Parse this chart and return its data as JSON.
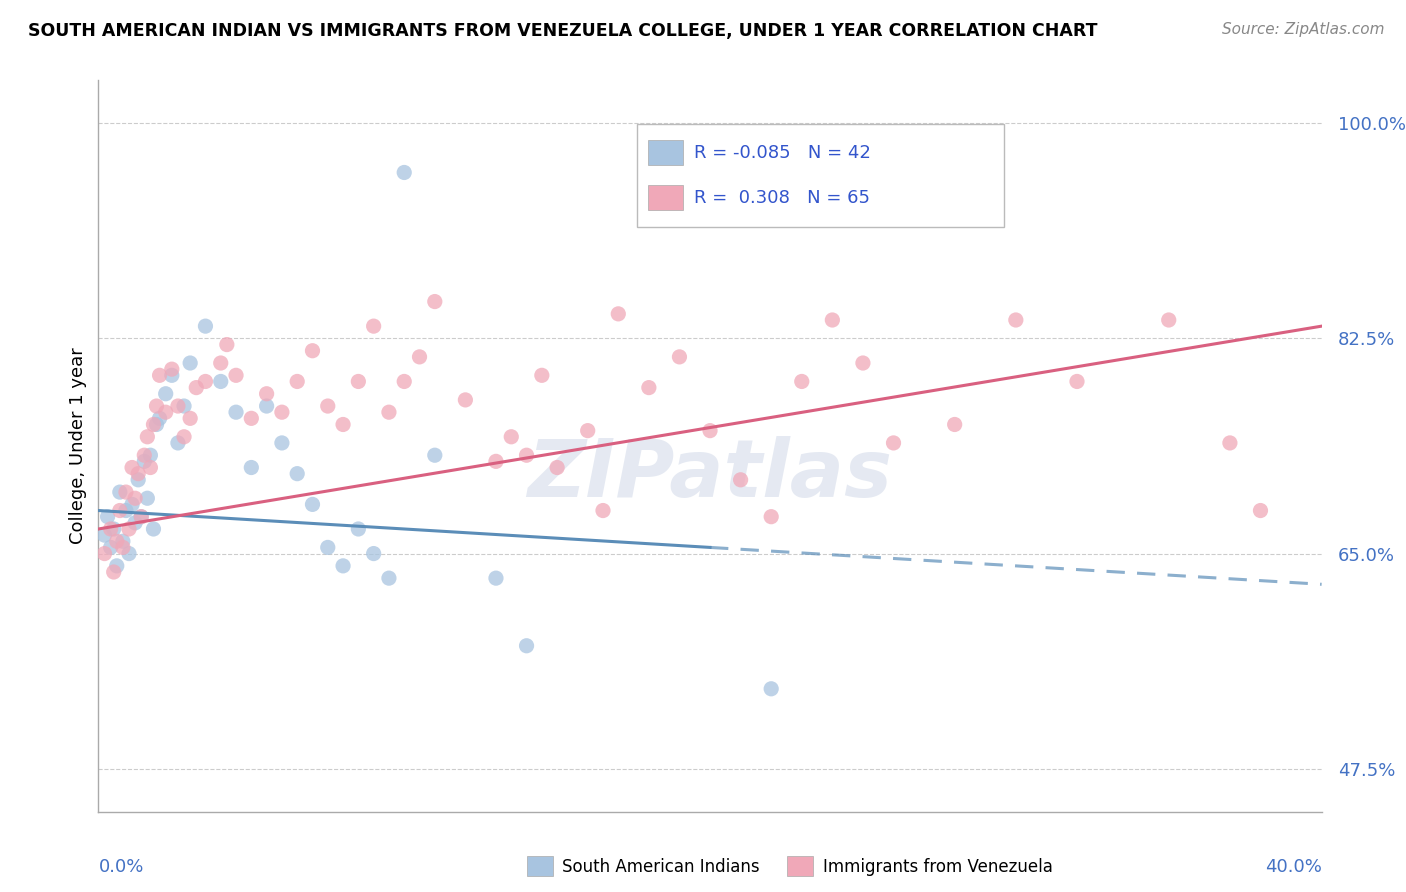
{
  "title": "SOUTH AMERICAN INDIAN VS IMMIGRANTS FROM VENEZUELA COLLEGE, UNDER 1 YEAR CORRELATION CHART",
  "source_text": "Source: ZipAtlas.com",
  "ylabel_label": "College, Under 1 year",
  "xmin": 0.0,
  "xmax": 40.0,
  "ymin": 44.0,
  "ymax": 103.5,
  "yticks": [
    47.5,
    65.0,
    82.5,
    100.0
  ],
  "blue_color": "#a8c4e0",
  "pink_color": "#f0a8b8",
  "blue_line_color": "#5b8db8",
  "pink_line_color": "#d96080",
  "blue_trend": [
    0.0,
    68.5,
    40.0,
    62.5
  ],
  "pink_trend": [
    0.0,
    67.0,
    40.0,
    83.5
  ],
  "blue_dashed_start_x": 20.0,
  "blue_dots": [
    [
      0.2,
      66.5
    ],
    [
      0.3,
      68.0
    ],
    [
      0.4,
      65.5
    ],
    [
      0.5,
      67.0
    ],
    [
      0.6,
      64.0
    ],
    [
      0.7,
      70.0
    ],
    [
      0.8,
      66.0
    ],
    [
      0.9,
      68.5
    ],
    [
      1.0,
      65.0
    ],
    [
      1.1,
      69.0
    ],
    [
      1.2,
      67.5
    ],
    [
      1.3,
      71.0
    ],
    [
      1.4,
      68.0
    ],
    [
      1.5,
      72.5
    ],
    [
      1.6,
      69.5
    ],
    [
      1.7,
      73.0
    ],
    [
      1.8,
      67.0
    ],
    [
      1.9,
      75.5
    ],
    [
      2.0,
      76.0
    ],
    [
      2.2,
      78.0
    ],
    [
      2.4,
      79.5
    ],
    [
      2.6,
      74.0
    ],
    [
      2.8,
      77.0
    ],
    [
      3.0,
      80.5
    ],
    [
      3.5,
      83.5
    ],
    [
      4.0,
      79.0
    ],
    [
      4.5,
      76.5
    ],
    [
      5.0,
      72.0
    ],
    [
      5.5,
      77.0
    ],
    [
      6.0,
      74.0
    ],
    [
      6.5,
      71.5
    ],
    [
      7.0,
      69.0
    ],
    [
      7.5,
      65.5
    ],
    [
      8.0,
      64.0
    ],
    [
      8.5,
      67.0
    ],
    [
      9.0,
      65.0
    ],
    [
      9.5,
      63.0
    ],
    [
      10.0,
      96.0
    ],
    [
      11.0,
      73.0
    ],
    [
      13.0,
      63.0
    ],
    [
      14.0,
      57.5
    ],
    [
      22.0,
      54.0
    ]
  ],
  "pink_dots": [
    [
      0.2,
      65.0
    ],
    [
      0.4,
      67.0
    ],
    [
      0.5,
      63.5
    ],
    [
      0.6,
      66.0
    ],
    [
      0.7,
      68.5
    ],
    [
      0.8,
      65.5
    ],
    [
      0.9,
      70.0
    ],
    [
      1.0,
      67.0
    ],
    [
      1.1,
      72.0
    ],
    [
      1.2,
      69.5
    ],
    [
      1.3,
      71.5
    ],
    [
      1.4,
      68.0
    ],
    [
      1.5,
      73.0
    ],
    [
      1.6,
      74.5
    ],
    [
      1.7,
      72.0
    ],
    [
      1.8,
      75.5
    ],
    [
      1.9,
      77.0
    ],
    [
      2.0,
      79.5
    ],
    [
      2.2,
      76.5
    ],
    [
      2.4,
      80.0
    ],
    [
      2.6,
      77.0
    ],
    [
      2.8,
      74.5
    ],
    [
      3.0,
      76.0
    ],
    [
      3.2,
      78.5
    ],
    [
      3.5,
      79.0
    ],
    [
      4.0,
      80.5
    ],
    [
      4.2,
      82.0
    ],
    [
      4.5,
      79.5
    ],
    [
      5.0,
      76.0
    ],
    [
      5.5,
      78.0
    ],
    [
      6.0,
      76.5
    ],
    [
      6.5,
      79.0
    ],
    [
      7.0,
      81.5
    ],
    [
      7.5,
      77.0
    ],
    [
      8.0,
      75.5
    ],
    [
      8.5,
      79.0
    ],
    [
      9.0,
      83.5
    ],
    [
      9.5,
      76.5
    ],
    [
      10.0,
      79.0
    ],
    [
      10.5,
      81.0
    ],
    [
      11.0,
      85.5
    ],
    [
      12.0,
      77.5
    ],
    [
      13.0,
      72.5
    ],
    [
      13.5,
      74.5
    ],
    [
      14.0,
      73.0
    ],
    [
      14.5,
      79.5
    ],
    [
      15.0,
      72.0
    ],
    [
      16.0,
      75.0
    ],
    [
      16.5,
      68.5
    ],
    [
      17.0,
      84.5
    ],
    [
      18.0,
      78.5
    ],
    [
      19.0,
      81.0
    ],
    [
      20.0,
      75.0
    ],
    [
      21.0,
      71.0
    ],
    [
      22.0,
      68.0
    ],
    [
      23.0,
      79.0
    ],
    [
      24.0,
      84.0
    ],
    [
      25.0,
      80.5
    ],
    [
      26.0,
      74.0
    ],
    [
      28.0,
      75.5
    ],
    [
      30.0,
      84.0
    ],
    [
      32.0,
      79.0
    ],
    [
      35.0,
      84.0
    ],
    [
      37.0,
      74.0
    ],
    [
      38.0,
      68.5
    ]
  ],
  "watermark": "ZIPatlas",
  "background_color": "#ffffff",
  "grid_color": "#cccccc"
}
